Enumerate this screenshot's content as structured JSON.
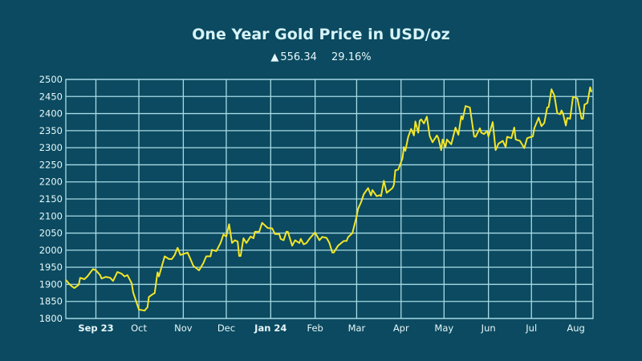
{
  "chart_data": {
    "type": "line",
    "title": "One Year Gold Price in USD/oz",
    "subtitle": {
      "change_icon": "triangle-up-icon",
      "change_value": "556.34",
      "change_percent": "29.16%"
    },
    "xlabel": "",
    "ylabel": "",
    "xlim": [
      "2023-08-11",
      "2024-08-13"
    ],
    "ylim": [
      1800,
      2500
    ],
    "y_ticks": [
      1800,
      1850,
      1900,
      1950,
      2000,
      2050,
      2100,
      2150,
      2200,
      2250,
      2300,
      2350,
      2400,
      2450,
      2500
    ],
    "x_ticks": [
      {
        "date": "2023-09-01",
        "label": "Sep 23",
        "bold": true
      },
      {
        "date": "2023-10-01",
        "label": "Oct",
        "bold": false
      },
      {
        "date": "2023-11-01",
        "label": "Nov",
        "bold": false
      },
      {
        "date": "2023-12-01",
        "label": "Dec",
        "bold": false
      },
      {
        "date": "2024-01-01",
        "label": "Jan 24",
        "bold": true
      },
      {
        "date": "2024-02-01",
        "label": "Feb",
        "bold": false
      },
      {
        "date": "2024-03-01",
        "label": "Mar",
        "bold": false
      },
      {
        "date": "2024-04-01",
        "label": "Apr",
        "bold": false
      },
      {
        "date": "2024-05-01",
        "label": "May",
        "bold": false
      },
      {
        "date": "2024-06-01",
        "label": "Jun",
        "bold": false
      },
      {
        "date": "2024-07-01",
        "label": "Jul",
        "bold": false
      },
      {
        "date": "2024-08-01",
        "label": "Aug",
        "bold": false
      }
    ],
    "grid": true,
    "colors": {
      "background": "#0b4a60",
      "grid": "#a9dbe6",
      "line": "#f3e628",
      "text": "#d6f3f8"
    },
    "series": [
      {
        "points": [
          [
            "2023-08-11",
            1913
          ],
          [
            "2023-08-13",
            1903
          ],
          [
            "2023-08-15",
            1895
          ],
          [
            "2023-08-17",
            1889
          ],
          [
            "2023-08-20",
            1899
          ],
          [
            "2023-08-21",
            1919
          ],
          [
            "2023-08-24",
            1915
          ],
          [
            "2023-08-26",
            1923
          ],
          [
            "2023-08-30",
            1945
          ],
          [
            "2023-09-01",
            1941
          ],
          [
            "2023-09-04",
            1927
          ],
          [
            "2023-09-05",
            1917
          ],
          [
            "2023-09-08",
            1922
          ],
          [
            "2023-09-11",
            1919
          ],
          [
            "2023-09-13",
            1910
          ],
          [
            "2023-09-16",
            1936
          ],
          [
            "2023-09-19",
            1931
          ],
          [
            "2023-09-21",
            1923
          ],
          [
            "2023-09-23",
            1927
          ],
          [
            "2023-09-26",
            1903
          ],
          [
            "2023-09-27",
            1876
          ],
          [
            "2023-10-01",
            1826
          ],
          [
            "2023-10-05",
            1823
          ],
          [
            "2023-10-07",
            1833
          ],
          [
            "2023-10-08",
            1863
          ],
          [
            "2023-10-11",
            1872
          ],
          [
            "2023-10-12",
            1874
          ],
          [
            "2023-10-14",
            1935
          ],
          [
            "2023-10-15",
            1923
          ],
          [
            "2023-10-19",
            1982
          ],
          [
            "2023-10-22",
            1974
          ],
          [
            "2023-10-24",
            1974
          ],
          [
            "2023-10-26",
            1986
          ],
          [
            "2023-10-28",
            2007
          ],
          [
            "2023-10-30",
            1986
          ],
          [
            "2023-11-04",
            1993
          ],
          [
            "2023-11-08",
            1954
          ],
          [
            "2023-11-12",
            1941
          ],
          [
            "2023-11-15",
            1962
          ],
          [
            "2023-11-17",
            1982
          ],
          [
            "2023-11-20",
            1982
          ],
          [
            "2023-11-21",
            2001
          ],
          [
            "2023-11-24",
            1997
          ],
          [
            "2023-11-27",
            2021
          ],
          [
            "2023-11-29",
            2046
          ],
          [
            "2023-12-01",
            2040
          ],
          [
            "2023-12-03",
            2076
          ],
          [
            "2023-12-05",
            2021
          ],
          [
            "2023-12-07",
            2029
          ],
          [
            "2023-12-09",
            2025
          ],
          [
            "2023-12-10",
            1983
          ],
          [
            "2023-12-11",
            1983
          ],
          [
            "2023-12-13",
            2035
          ],
          [
            "2023-12-15",
            2021
          ],
          [
            "2023-12-18",
            2040
          ],
          [
            "2023-12-20",
            2035
          ],
          [
            "2023-12-21",
            2054
          ],
          [
            "2023-12-24",
            2054
          ],
          [
            "2023-12-26",
            2080
          ],
          [
            "2023-12-30",
            2065
          ],
          [
            "2024-01-02",
            2064
          ],
          [
            "2024-01-04",
            2047
          ],
          [
            "2024-01-07",
            2047
          ],
          [
            "2024-01-08",
            2033
          ],
          [
            "2024-01-10",
            2029
          ],
          [
            "2024-01-12",
            2054
          ],
          [
            "2024-01-13",
            2054
          ],
          [
            "2024-01-16",
            2013
          ],
          [
            "2024-01-18",
            2029
          ],
          [
            "2024-01-21",
            2021
          ],
          [
            "2024-01-22",
            2033
          ],
          [
            "2024-01-24",
            2017
          ],
          [
            "2024-01-26",
            2021
          ],
          [
            "2024-01-28",
            2033
          ],
          [
            "2024-02-01",
            2052
          ],
          [
            "2024-02-04",
            2029
          ],
          [
            "2024-02-06",
            2039
          ],
          [
            "2024-02-09",
            2036
          ],
          [
            "2024-02-11",
            2021
          ],
          [
            "2024-02-13",
            1993
          ],
          [
            "2024-02-14",
            1993
          ],
          [
            "2024-02-17",
            2013
          ],
          [
            "2024-02-21",
            2027
          ],
          [
            "2024-02-23",
            2027
          ],
          [
            "2024-02-24",
            2038
          ],
          [
            "2024-02-27",
            2050
          ],
          [
            "2024-03-01",
            2099
          ],
          [
            "2024-03-02",
            2121
          ],
          [
            "2024-03-04",
            2140
          ],
          [
            "2024-03-06",
            2164
          ],
          [
            "2024-03-09",
            2182
          ],
          [
            "2024-03-11",
            2160
          ],
          [
            "2024-03-12",
            2176
          ],
          [
            "2024-03-15",
            2158
          ],
          [
            "2024-03-17",
            2161
          ],
          [
            "2024-03-18",
            2158
          ],
          [
            "2024-03-20",
            2203
          ],
          [
            "2024-03-22",
            2168
          ],
          [
            "2024-03-26",
            2182
          ],
          [
            "2024-03-27",
            2191
          ],
          [
            "2024-03-28",
            2234
          ],
          [
            "2024-03-30",
            2236
          ],
          [
            "2024-04-02",
            2269
          ],
          [
            "2024-04-03",
            2302
          ],
          [
            "2024-04-04",
            2291
          ],
          [
            "2024-04-06",
            2332
          ],
          [
            "2024-04-08",
            2355
          ],
          [
            "2024-04-10",
            2336
          ],
          [
            "2024-04-11",
            2377
          ],
          [
            "2024-04-13",
            2344
          ],
          [
            "2024-04-14",
            2379
          ],
          [
            "2024-04-15",
            2383
          ],
          [
            "2024-04-17",
            2371
          ],
          [
            "2024-04-19",
            2391
          ],
          [
            "2024-04-21",
            2334
          ],
          [
            "2024-04-23",
            2316
          ],
          [
            "2024-04-26",
            2336
          ],
          [
            "2024-04-27",
            2328
          ],
          [
            "2024-04-29",
            2293
          ],
          [
            "2024-04-30",
            2324
          ],
          [
            "2024-05-02",
            2302
          ],
          [
            "2024-05-03",
            2324
          ],
          [
            "2024-05-06",
            2310
          ],
          [
            "2024-05-09",
            2359
          ],
          [
            "2024-05-11",
            2338
          ],
          [
            "2024-05-13",
            2393
          ],
          [
            "2024-05-14",
            2383
          ],
          [
            "2024-05-16",
            2422
          ],
          [
            "2024-05-19",
            2418
          ],
          [
            "2024-05-22",
            2333
          ],
          [
            "2024-05-23",
            2332
          ],
          [
            "2024-05-26",
            2357
          ],
          [
            "2024-05-27",
            2344
          ],
          [
            "2024-05-29",
            2340
          ],
          [
            "2024-05-31",
            2349
          ],
          [
            "2024-06-01",
            2333
          ],
          [
            "2024-06-04",
            2375
          ],
          [
            "2024-06-06",
            2293
          ],
          [
            "2024-06-08",
            2312
          ],
          [
            "2024-06-11",
            2320
          ],
          [
            "2024-06-13",
            2302
          ],
          [
            "2024-06-14",
            2332
          ],
          [
            "2024-06-17",
            2328
          ],
          [
            "2024-06-19",
            2359
          ],
          [
            "2024-06-20",
            2324
          ],
          [
            "2024-06-23",
            2320
          ],
          [
            "2024-06-26",
            2299
          ],
          [
            "2024-06-28",
            2328
          ],
          [
            "2024-07-01",
            2332
          ],
          [
            "2024-07-02",
            2333
          ],
          [
            "2024-07-03",
            2357
          ],
          [
            "2024-07-06",
            2388
          ],
          [
            "2024-07-08",
            2363
          ],
          [
            "2024-07-10",
            2373
          ],
          [
            "2024-07-12",
            2418
          ],
          [
            "2024-07-13",
            2419
          ],
          [
            "2024-07-15",
            2471
          ],
          [
            "2024-07-17",
            2453
          ],
          [
            "2024-07-19",
            2401
          ],
          [
            "2024-07-21",
            2398
          ],
          [
            "2024-07-22",
            2409
          ],
          [
            "2024-07-23",
            2401
          ],
          [
            "2024-07-25",
            2365
          ],
          [
            "2024-07-26",
            2387
          ],
          [
            "2024-07-28",
            2385
          ],
          [
            "2024-07-30",
            2449
          ],
          [
            "2024-08-02",
            2445
          ],
          [
            "2024-08-05",
            2385
          ],
          [
            "2024-08-06",
            2385
          ],
          [
            "2024-08-07",
            2426
          ],
          [
            "2024-08-09",
            2431
          ],
          [
            "2024-08-11",
            2477
          ],
          [
            "2024-08-12",
            2463
          ]
        ]
      }
    ]
  }
}
